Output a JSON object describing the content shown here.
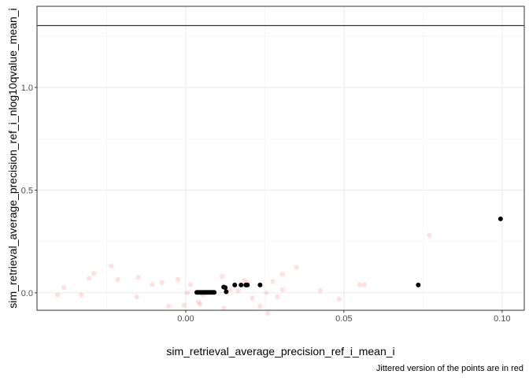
{
  "chart_data": {
    "type": "scatter",
    "xlabel": "sim_retrieval_average_precision_ref_i_mean_i",
    "ylabel": "sim_retrieval_average_precision_ref_i_nlog10qvalue_mean_i",
    "caption": "Jittered version of the points are in red",
    "xlim": [
      -0.047,
      0.107
    ],
    "ylim": [
      -0.085,
      1.395
    ],
    "x_ticks": [
      0.0,
      0.05,
      0.1
    ],
    "x_tick_labels": [
      "0.00",
      "0.05",
      "0.10"
    ],
    "y_ticks": [
      0.0,
      0.5,
      1.0
    ],
    "y_tick_labels": [
      "0.0",
      "0.5",
      "1.0"
    ],
    "hline": 1.30103,
    "grid": true,
    "colors": {
      "points": "#000000",
      "jittered": "#ff0000",
      "hline": "#333333",
      "grid_major": "#ebebeb",
      "grid_minor": "#f4f4f4",
      "panel_border": "#333333"
    },
    "series": [
      {
        "points": [
          [
            0.0035,
            0.002
          ],
          [
            0.004,
            0.002
          ],
          [
            0.0045,
            0.002
          ],
          [
            0.005,
            0.002
          ],
          [
            0.0055,
            0.002
          ],
          [
            0.006,
            0.002
          ],
          [
            0.0065,
            0.002
          ],
          [
            0.007,
            0.002
          ],
          [
            0.0075,
            0.002
          ],
          [
            0.008,
            0.002
          ],
          [
            0.0085,
            0.002
          ],
          [
            0.009,
            0.002
          ],
          [
            0.012,
            0.028
          ],
          [
            0.0125,
            0.025
          ],
          [
            0.0128,
            0.005
          ],
          [
            0.0155,
            0.038
          ],
          [
            0.0175,
            0.038
          ],
          [
            0.019,
            0.038
          ],
          [
            0.0195,
            0.038
          ],
          [
            0.0235,
            0.038
          ],
          [
            0.0735,
            0.038
          ],
          [
            0.0995,
            0.36
          ]
        ]
      },
      {
        "points": [
          [
            -0.0405,
            -0.01
          ],
          [
            -0.0385,
            0.025
          ],
          [
            -0.033,
            -0.01
          ],
          [
            -0.0305,
            0.07
          ],
          [
            -0.029,
            0.095
          ],
          [
            -0.0235,
            0.13
          ],
          [
            -0.0215,
            0.065
          ],
          [
            -0.0155,
            -0.02
          ],
          [
            -0.015,
            0.075
          ],
          [
            -0.0105,
            0.04
          ],
          [
            -0.0075,
            0.05
          ],
          [
            -0.0055,
            -0.065
          ],
          [
            -0.0025,
            0.065
          ],
          [
            -0.0005,
            -0.06
          ],
          [
            0.0005,
            0.0
          ],
          [
            0.0015,
            0.04
          ],
          [
            0.004,
            -0.045
          ],
          [
            0.0045,
            -0.055
          ],
          [
            0.0055,
            -0.01
          ],
          [
            0.0115,
            0.08
          ],
          [
            0.012,
            -0.075
          ],
          [
            0.014,
            0.015
          ],
          [
            0.0165,
            0.01
          ],
          [
            0.0185,
            0.06
          ],
          [
            0.0195,
            0.05
          ],
          [
            0.021,
            -0.025
          ],
          [
            0.0235,
            -0.065
          ],
          [
            0.0255,
            0.0
          ],
          [
            0.026,
            -0.1
          ],
          [
            0.0275,
            0.055
          ],
          [
            0.029,
            -0.02
          ],
          [
            0.0305,
            0.015
          ],
          [
            0.0305,
            0.09
          ],
          [
            0.035,
            0.125
          ],
          [
            0.0425,
            0.01
          ],
          [
            0.0485,
            -0.03
          ],
          [
            0.055,
            0.04
          ],
          [
            0.0565,
            0.04
          ],
          [
            0.077,
            0.28
          ]
        ]
      }
    ]
  }
}
